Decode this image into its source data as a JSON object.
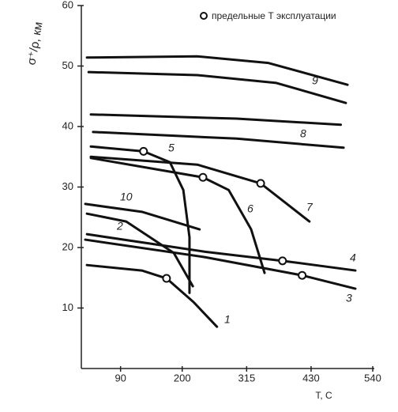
{
  "chart_data": {
    "type": "line",
    "annotation": "предельные Т эксплуатации",
    "y_label": "σ⁺/ρ, км",
    "x_label": "T,  C",
    "xlim": [
      20,
      540
    ],
    "xticks": [
      90,
      200,
      315,
      430,
      540
    ],
    "ylim": [
      0,
      60
    ],
    "yticks": [
      10,
      20,
      30,
      40,
      50,
      60
    ],
    "color": "#111111",
    "series": [
      {
        "name": null,
        "x": [
          30,
          227,
          354,
          495
        ],
        "values": [
          51.4,
          51.6,
          50.5,
          46.9
        ]
      },
      {
        "name": "9",
        "x": [
          33,
          227,
          368,
          492
        ],
        "values": [
          49.0,
          48.5,
          47.2,
          43.9
        ]
      },
      {
        "name": null,
        "x": [
          37,
          297,
          483
        ],
        "values": [
          42.0,
          41.3,
          40.3
        ]
      },
      {
        "name": "8",
        "x": [
          41,
          297,
          488
        ],
        "values": [
          39.1,
          38.0,
          36.5
        ]
      },
      {
        "name": "5",
        "x": [
          37,
          131,
          178,
          202,
          213,
          213
        ],
        "values": [
          36.7,
          35.9,
          34.1,
          29.5,
          21.7,
          12.5
        ]
      },
      {
        "name": "6",
        "x": [
          37,
          237,
          283,
          323,
          347
        ],
        "values": [
          34.8,
          31.6,
          29.5,
          23.0,
          15.8
        ]
      },
      {
        "name": "7",
        "x": [
          37,
          227,
          340,
          427
        ],
        "values": [
          35.0,
          33.7,
          30.6,
          24.3
        ]
      },
      {
        "name": "10",
        "x": [
          27,
          128,
          231
        ],
        "values": [
          27.2,
          25.9,
          23.0
        ]
      },
      {
        "name": "2",
        "x": [
          30,
          100,
          185,
          219
        ],
        "values": [
          25.6,
          24.3,
          19.1,
          13.6
        ]
      },
      {
        "name": "4",
        "x": [
          30,
          241,
          379,
          509
        ],
        "values": [
          22.2,
          19.3,
          17.8,
          16.2
        ]
      },
      {
        "name": "3",
        "x": [
          27,
          241,
          414,
          509
        ],
        "values": [
          21.3,
          18.4,
          15.4,
          13.2
        ]
      },
      {
        "name": "1",
        "x": [
          30,
          128,
          172,
          220,
          262
        ],
        "values": [
          17.1,
          16.2,
          14.9,
          11.0,
          6.9
        ]
      }
    ],
    "limit_points": {
      "x": [
        131,
        237,
        340,
        379,
        414,
        172
      ],
      "values": [
        35.9,
        31.6,
        30.6,
        17.8,
        15.4,
        14.9
      ]
    }
  }
}
